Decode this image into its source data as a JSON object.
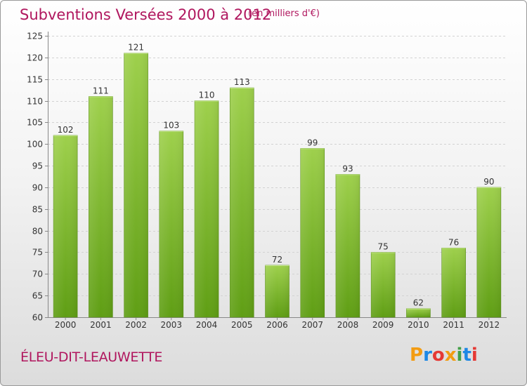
{
  "header": {
    "title": "Subventions Versées 2000 à 2012",
    "unit": "(en milliers d'€)"
  },
  "footer": {
    "town": "ÉLEU-DIT-LEAUWETTE",
    "logo_letters": [
      "P",
      "r",
      "o",
      "x",
      "i",
      "t",
      "i"
    ],
    "logo_colors": [
      "#f39c12",
      "#1e88e5",
      "#e53935",
      "#f39c12",
      "#43a047",
      "#1e88e5",
      "#e53935"
    ]
  },
  "chart_data": {
    "type": "bar",
    "categories": [
      "2000",
      "2001",
      "2002",
      "2003",
      "2004",
      "2005",
      "2006",
      "2007",
      "2008",
      "2009",
      "2010",
      "2011",
      "2012"
    ],
    "values": [
      102,
      111,
      121,
      103,
      110,
      113,
      72,
      99,
      93,
      75,
      62,
      76,
      90
    ],
    "yticks": [
      60,
      65,
      70,
      75,
      80,
      85,
      90,
      95,
      100,
      105,
      110,
      115,
      120,
      125
    ],
    "ylim": [
      60,
      125
    ],
    "grid": true,
    "bar_color_top": "#9ed04c",
    "bar_color_bottom": "#5f9e14"
  }
}
